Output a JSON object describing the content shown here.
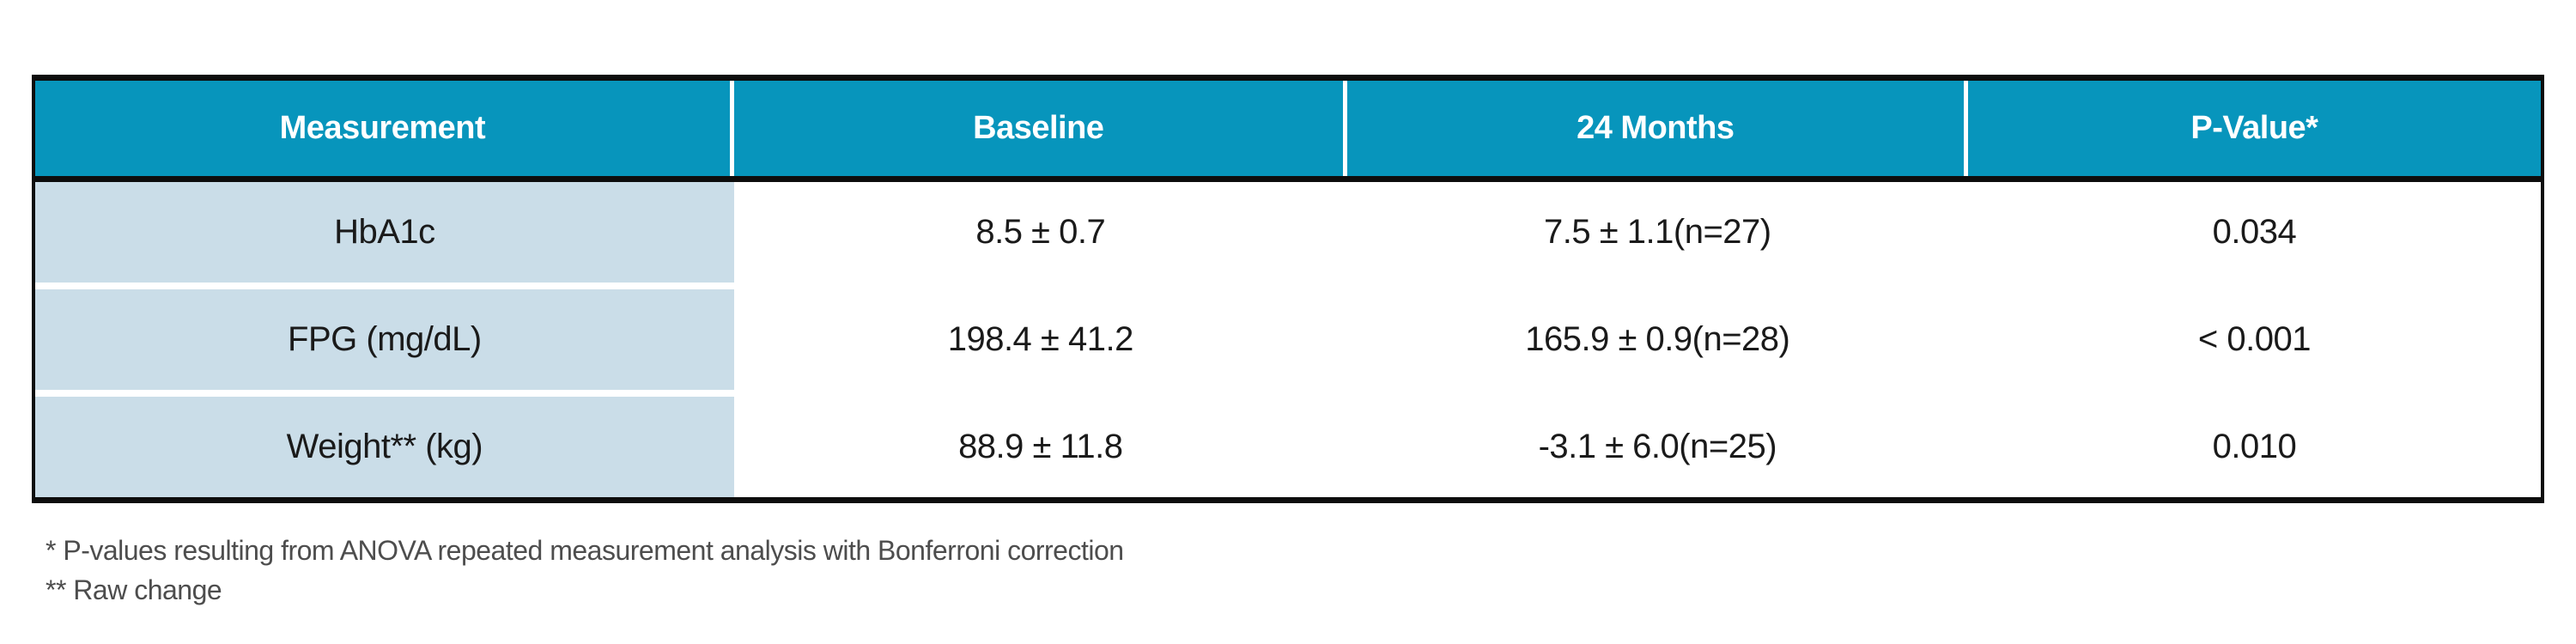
{
  "table": {
    "columns": [
      "Measurement",
      "Baseline",
      "24 Months",
      "P-Value*"
    ],
    "rows": [
      {
        "measurement": "HbA1c",
        "baseline": "8.5 ± 0.7",
        "months24": "7.5 ± 1.1(n=27)",
        "pvalue": "0.034"
      },
      {
        "measurement": "FPG (mg/dL)",
        "baseline": "198.4 ± 41.2",
        "months24": "165.9 ± 0.9(n=28)",
        "pvalue": "< 0.001"
      },
      {
        "measurement": "Weight** (kg)",
        "baseline": "88.9 ± 11.8",
        "months24": "-3.1 ± 6.0(n=25)",
        "pvalue": "0.010"
      }
    ]
  },
  "footnotes": [
    "* P-values resulting from ANOVA repeated measurement analysis with Bonferroni correction",
    "** Raw change"
  ],
  "colors": {
    "header_bg": "#0795BC",
    "row_label_bg": "#CADDE8",
    "border": "#0D0D0D",
    "footnote_text": "#4D4D4D"
  }
}
